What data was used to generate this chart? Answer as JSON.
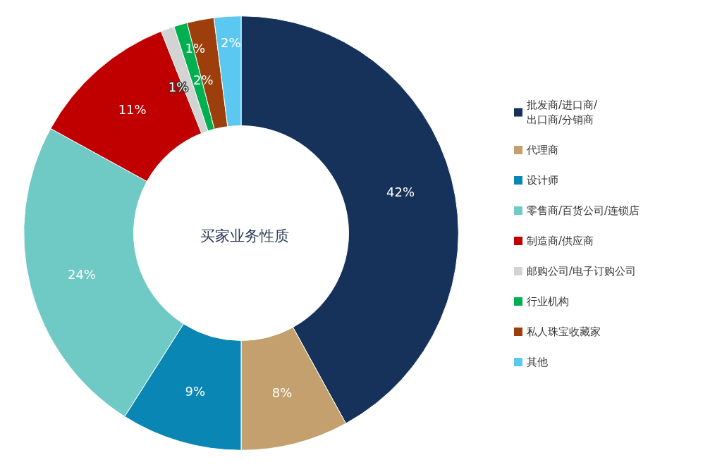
{
  "chart_data": {
    "type": "donut",
    "title": "买家业务性质",
    "categories": [
      "批发商/进口商/\n出口商/分销商",
      "代理商",
      "设计师",
      "零售商/百货公司/连锁店",
      "制造商/供应商",
      "邮购公司/电子订购公司",
      "行业机构",
      "私人珠宝收藏家",
      "其他"
    ],
    "values": [
      42,
      8,
      9,
      24,
      11,
      1,
      1,
      2,
      2
    ],
    "colors": [
      "#16325a",
      "#c4a06e",
      "#0a86b4",
      "#6fcac6",
      "#c00000",
      "#d3d3d3",
      "#00b050",
      "#9c3f0c",
      "#5bc8f2"
    ],
    "value_labels": [
      "42%",
      "8%",
      "9%",
      "24%",
      "11%",
      "1%",
      "1%",
      "2%",
      "2%"
    ],
    "legend": "right"
  }
}
